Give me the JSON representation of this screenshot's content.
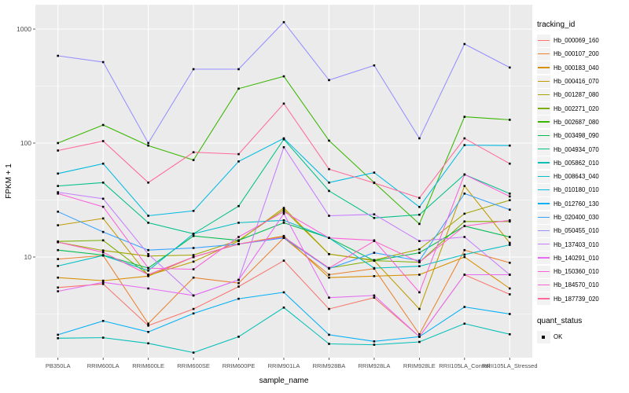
{
  "figure": {
    "y_axis": {
      "label": "FPKM + 1",
      "tick_labels": [
        "10",
        "100",
        "1000"
      ]
    },
    "x_axis": {
      "label": "sample_name"
    },
    "legend": {
      "tracking_title": "tracking_id",
      "quant_title": "quant_status",
      "quant_ok_label": "OK"
    },
    "colors": {
      "panel_bg": "#EBEBEB",
      "grid": "#FFFFFF",
      "tick_text": "#4D4D4D",
      "point": "#000000",
      "legend_key_bg": "#F2F2F2"
    }
  },
  "chart_data": {
    "type": "line",
    "title": "",
    "xlabel": "sample_name",
    "ylabel": "FPKM + 1",
    "y_scale": "log10",
    "ylim": [
      1.3,
      1630
    ],
    "y_major_ticks": [
      10,
      100,
      1000
    ],
    "y_minor_ticks": [
      3.162,
      31.62,
      316.2
    ],
    "grid": "on",
    "legend_position": "right",
    "point_marker": "black-square",
    "categories": [
      "PB350LA",
      "RRIM600LA",
      "RRIM600LE",
      "RRIM600SE",
      "RRIM600PE",
      "RRIM901LA",
      "RRIM928BA",
      "RRIM928LA",
      "RRIM928LE",
      "RRII105LA_Control",
      "RRII105LA_Stressed"
    ],
    "series": [
      {
        "name": "Hb_000069_160",
        "color": "#F8766D",
        "values": [
          5.4,
          5.8,
          2.5,
          3.5,
          5.5,
          9.3,
          3.5,
          4.4,
          2.0,
          7.0,
          4.7
        ]
      },
      {
        "name": "Hb_000107_200",
        "color": "#EA8331",
        "values": [
          9.6,
          10.3,
          2.6,
          6.6,
          5.9,
          14.7,
          7.0,
          7.9,
          2.1,
          11.5,
          8.9
        ]
      },
      {
        "name": "Hb_000183_040",
        "color": "#D89000",
        "values": [
          6.6,
          6.2,
          6.8,
          10.0,
          13.0,
          15.3,
          6.6,
          6.8,
          7.0,
          10.0,
          5.3
        ]
      },
      {
        "name": "Hb_000416_070",
        "color": "#C09B00",
        "values": [
          19.0,
          21.8,
          6.9,
          9.1,
          13.8,
          27.0,
          10.6,
          9.3,
          3.5,
          42.0,
          13.3
        ]
      },
      {
        "name": "Hb_001287_080",
        "color": "#A3A500",
        "values": [
          13.5,
          11.4,
          10.2,
          10.4,
          14.0,
          26.0,
          10.6,
          9.4,
          11.7,
          24.0,
          31.5
        ]
      },
      {
        "name": "Hb_002271_020",
        "color": "#7CAE00",
        "values": [
          13.7,
          14.0,
          7.0,
          10.0,
          13.0,
          15.0,
          8.0,
          9.3,
          9.0,
          20.5,
          20.5
        ]
      },
      {
        "name": "Hb_002687_080",
        "color": "#39B600",
        "values": [
          100,
          144,
          95,
          71,
          300,
          385,
          105,
          45,
          19.5,
          170,
          160
        ]
      },
      {
        "name": "Hb_003498_090",
        "color": "#00BB4E",
        "values": [
          11.5,
          10.4,
          8.0,
          15.3,
          14.0,
          20.0,
          14.7,
          9.3,
          10.9,
          18.7,
          15.0
        ]
      },
      {
        "name": "Hb_004934_070",
        "color": "#00C087",
        "values": [
          42,
          45,
          20,
          16,
          28,
          108,
          38,
          22,
          23.5,
          53,
          36
        ]
      },
      {
        "name": "Hb_005862_010",
        "color": "#00C0B6",
        "values": [
          1.94,
          1.96,
          1.75,
          1.45,
          2.0,
          3.6,
          1.73,
          1.7,
          1.8,
          2.6,
          2.1
        ]
      },
      {
        "name": "Hb_008643_040",
        "color": "#00BFC4",
        "values": [
          8.35,
          10.3,
          7.6,
          16.0,
          20.0,
          21.0,
          14.7,
          8.0,
          8.3,
          10.5,
          12.8
        ]
      },
      {
        "name": "Hb_010180_010",
        "color": "#00BAE0",
        "values": [
          54,
          66,
          23,
          25.4,
          69,
          110,
          45,
          55,
          27.5,
          96,
          95
        ]
      },
      {
        "name": "Hb_012760_130",
        "color": "#00B0F6",
        "values": [
          2.08,
          2.75,
          2.2,
          3.2,
          4.3,
          4.9,
          2.08,
          1.82,
          2.0,
          3.65,
          3.16
        ]
      },
      {
        "name": "Hb_020400_030",
        "color": "#35A2FF",
        "values": [
          25,
          16.6,
          11.5,
          12,
          13,
          14.7,
          7.9,
          10.9,
          9.3,
          36,
          26
        ]
      },
      {
        "name": "Hb_050455_010",
        "color": "#9590FF",
        "values": [
          583,
          513,
          100,
          445,
          445,
          1150,
          357,
          480,
          110,
          740,
          460
        ]
      },
      {
        "name": "Hb_137403_010",
        "color": "#C77CFF",
        "values": [
          37,
          32.5,
          10.6,
          4.6,
          6.3,
          92,
          23,
          23.7,
          13.8,
          15,
          7.0
        ]
      },
      {
        "name": "Hb_140291_010",
        "color": "#E76BF3",
        "values": [
          5.0,
          6.0,
          5.3,
          4.6,
          6.3,
          24,
          4.4,
          4.6,
          2.0,
          7.0,
          7.0
        ]
      },
      {
        "name": "Hb_150360_010",
        "color": "#FA62DB",
        "values": [
          36,
          27.6,
          8.0,
          7.8,
          15,
          25,
          14.7,
          14,
          4.9,
          53,
          34
        ]
      },
      {
        "name": "Hb_184570_010",
        "color": "#FF61CC",
        "values": [
          13.5,
          11.0,
          7.0,
          10.0,
          13.0,
          15.0,
          8.0,
          13.8,
          9.0,
          18.7,
          21
        ]
      },
      {
        "name": "Hb_187739_020",
        "color": "#FF6A98",
        "values": [
          86,
          104,
          45,
          83,
          80,
          222,
          59,
          44.6,
          33,
          110,
          66
        ]
      }
    ]
  }
}
